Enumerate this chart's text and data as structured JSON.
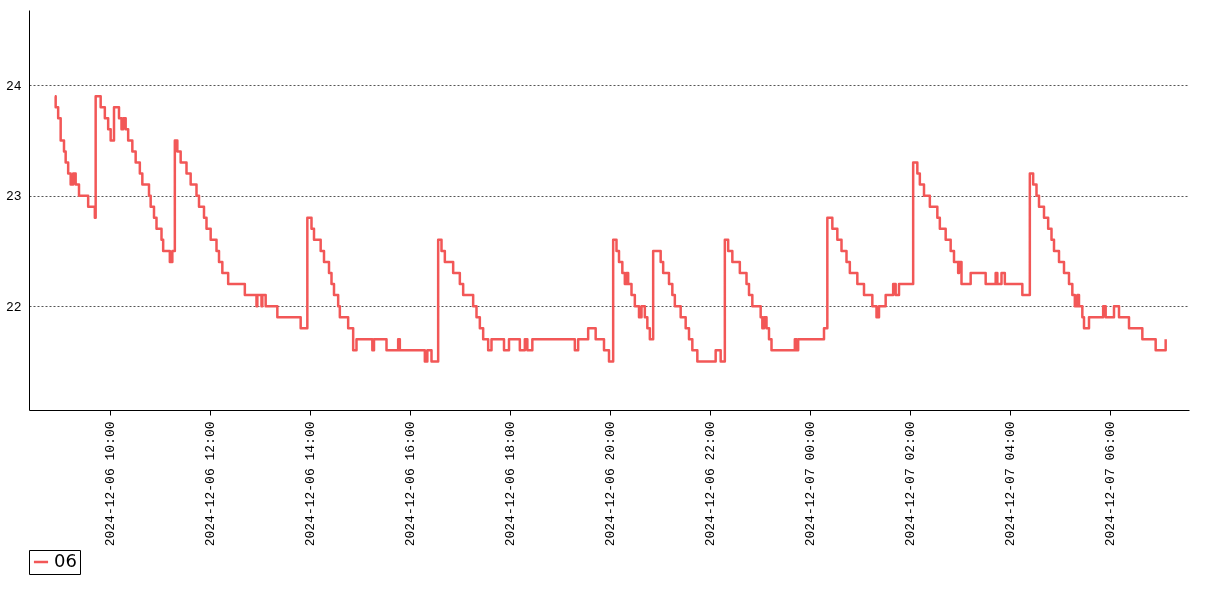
{
  "chart_data": {
    "type": "step",
    "xlim": [
      "2024-12-06T08:23",
      "2024-12-07T07:35"
    ],
    "ylim": [
      21.06,
      24.68
    ],
    "yticks": [
      22,
      23,
      24
    ],
    "xticks": [
      {
        "value": "2024-12-06T10:00",
        "label": "2024-12-06 10:00"
      },
      {
        "value": "2024-12-06T12:00",
        "label": "2024-12-06 12:00"
      },
      {
        "value": "2024-12-06T14:00",
        "label": "2024-12-06 14:00"
      },
      {
        "value": "2024-12-06T16:00",
        "label": "2024-12-06 16:00"
      },
      {
        "value": "2024-12-06T18:00",
        "label": "2024-12-06 18:00"
      },
      {
        "value": "2024-12-06T20:00",
        "label": "2024-12-06 20:00"
      },
      {
        "value": "2024-12-06T22:00",
        "label": "2024-12-06 22:00"
      },
      {
        "value": "2024-12-07T00:00",
        "label": "2024-12-07 00:00"
      },
      {
        "value": "2024-12-07T02:00",
        "label": "2024-12-07 02:00"
      },
      {
        "value": "2024-12-07T04:00",
        "label": "2024-12-07 04:00"
      },
      {
        "value": "2024-12-07T06:00",
        "label": "2024-12-07 06:00"
      }
    ],
    "grid": "y",
    "legend": "bottom",
    "x": [
      "2024-12-06T08:54",
      "2024-12-06T08:55",
      "2024-12-06T08:58",
      "2024-12-06T09:01",
      "2024-12-06T09:05",
      "2024-12-06T09:07",
      "2024-12-06T09:10",
      "2024-12-06T09:13",
      "2024-12-06T09:16",
      "2024-12-06T09:19",
      "2024-12-06T09:23",
      "2024-12-06T09:34",
      "2024-12-06T09:42",
      "2024-12-06T09:43",
      "2024-12-06T09:49",
      "2024-12-06T09:54",
      "2024-12-06T09:58",
      "2024-12-06T10:01",
      "2024-12-06T10:05",
      "2024-12-06T10:11",
      "2024-12-06T10:14",
      "2024-12-06T10:16",
      "2024-12-06T10:19",
      "2024-12-06T10:22",
      "2024-12-06T10:27",
      "2024-12-06T10:31",
      "2024-12-06T10:36",
      "2024-12-06T10:39",
      "2024-12-06T10:47",
      "2024-12-06T10:49",
      "2024-12-06T10:53",
      "2024-12-06T10:56",
      "2024-12-06T11:02",
      "2024-12-06T11:04",
      "2024-12-06T11:12",
      "2024-12-06T11:15",
      "2024-12-06T11:18",
      "2024-12-06T11:21",
      "2024-12-06T11:25",
      "2024-12-06T11:32",
      "2024-12-06T11:37",
      "2024-12-06T11:44",
      "2024-12-06T11:47",
      "2024-12-06T11:53",
      "2024-12-06T11:56",
      "2024-12-06T12:01",
      "2024-12-06T12:08",
      "2024-12-06T12:11",
      "2024-12-06T12:15",
      "2024-12-06T12:22",
      "2024-12-06T12:42",
      "2024-12-06T12:56",
      "2024-12-06T12:57",
      "2024-12-06T13:02",
      "2024-12-06T13:03",
      "2024-12-06T13:07",
      "2024-12-06T13:21",
      "2024-12-06T13:49",
      "2024-12-06T13:57",
      "2024-12-06T14:02",
      "2024-12-06T14:05",
      "2024-12-06T14:13",
      "2024-12-06T14:17",
      "2024-12-06T14:23",
      "2024-12-06T14:26",
      "2024-12-06T14:29",
      "2024-12-06T14:34",
      "2024-12-06T14:36",
      "2024-12-06T14:46",
      "2024-12-06T14:52",
      "2024-12-06T14:56",
      "2024-12-06T15:15",
      "2024-12-06T15:17",
      "2024-12-06T15:32",
      "2024-12-06T15:46",
      "2024-12-06T15:48",
      "2024-12-06T16:18",
      "2024-12-06T16:21",
      "2024-12-06T16:26",
      "2024-12-06T16:34",
      "2024-12-06T16:38",
      "2024-12-06T16:42",
      "2024-12-06T16:52",
      "2024-12-06T17:00",
      "2024-12-06T17:04",
      "2024-12-06T17:16",
      "2024-12-06T17:20",
      "2024-12-06T17:24",
      "2024-12-06T17:28",
      "2024-12-06T17:34",
      "2024-12-06T17:38",
      "2024-12-06T17:53",
      "2024-12-06T17:59",
      "2024-12-06T18:12",
      "2024-12-06T18:18",
      "2024-12-06T18:21",
      "2024-12-06T18:27",
      "2024-12-06T19:18",
      "2024-12-06T19:22",
      "2024-12-06T19:34",
      "2024-12-06T19:43",
      "2024-12-06T19:53",
      "2024-12-06T19:59",
      "2024-12-06T20:04",
      "2024-12-06T20:08",
      "2024-12-06T20:11",
      "2024-12-06T20:15",
      "2024-12-06T20:18",
      "2024-12-06T20:20",
      "2024-12-06T20:22",
      "2024-12-06T20:26",
      "2024-12-06T20:30",
      "2024-12-06T20:35",
      "2024-12-06T20:38",
      "2024-12-06T20:42",
      "2024-12-06T20:45",
      "2024-12-06T20:48",
      "2024-12-06T20:52",
      "2024-12-06T21:01",
      "2024-12-06T21:04",
      "2024-12-06T21:11",
      "2024-12-06T21:15",
      "2024-12-06T21:18",
      "2024-12-06T21:25",
      "2024-12-06T21:31",
      "2024-12-06T21:35",
      "2024-12-06T21:39",
      "2024-12-06T21:45",
      "2024-12-06T22:07",
      "2024-12-06T22:13",
      "2024-12-06T22:18",
      "2024-12-06T22:22",
      "2024-12-06T22:27",
      "2024-12-06T22:36",
      "2024-12-06T22:44",
      "2024-12-06T22:47",
      "2024-12-06T22:51",
      "2024-12-06T23:01",
      "2024-12-06T23:03",
      "2024-12-06T23:05",
      "2024-12-06T23:08",
      "2024-12-06T23:11",
      "2024-12-06T23:14",
      "2024-12-06T23:42",
      "2024-12-06T23:44",
      "2024-12-06T23:46",
      "2024-12-07T00:17",
      "2024-12-07T00:21",
      "2024-12-07T00:27",
      "2024-12-07T00:33",
      "2024-12-07T00:38",
      "2024-12-07T00:44",
      "2024-12-07T00:48",
      "2024-12-07T00:57",
      "2024-12-07T01:05",
      "2024-12-07T01:15",
      "2024-12-07T01:20",
      "2024-12-07T01:23",
      "2024-12-07T01:31",
      "2024-12-07T01:40",
      "2024-12-07T01:43",
      "2024-12-07T01:47",
      "2024-12-07T02:04",
      "2024-12-07T02:09",
      "2024-12-07T02:12",
      "2024-12-07T02:17",
      "2024-12-07T02:24",
      "2024-12-07T02:33",
      "2024-12-07T02:36",
      "2024-12-07T02:43",
      "2024-12-07T02:49",
      "2024-12-07T02:53",
      "2024-12-07T02:58",
      "2024-12-07T02:59",
      "2024-12-07T03:02",
      "2024-12-07T03:13",
      "2024-12-07T03:31",
      "2024-12-07T03:43",
      "2024-12-07T03:45",
      "2024-12-07T03:50",
      "2024-12-07T03:54",
      "2024-12-07T04:15",
      "2024-12-07T04:24",
      "2024-12-07T04:28",
      "2024-12-07T04:32",
      "2024-12-07T04:35",
      "2024-12-07T04:41",
      "2024-12-07T04:46",
      "2024-12-07T04:50",
      "2024-12-07T04:53",
      "2024-12-07T04:59",
      "2024-12-07T05:05",
      "2024-12-07T05:11",
      "2024-12-07T05:15",
      "2024-12-07T05:18",
      "2024-12-07T05:21",
      "2024-12-07T05:23",
      "2024-12-07T05:27",
      "2024-12-07T05:29",
      "2024-12-07T05:35",
      "2024-12-07T05:52",
      "2024-12-07T05:55",
      "2024-12-07T06:05",
      "2024-12-07T06:11",
      "2024-12-07T06:23",
      "2024-12-07T06:39",
      "2024-12-07T06:55",
      "2024-12-07T07:07"
    ],
    "series": [
      {
        "name": "06",
        "color": "#f25757",
        "values": [
          23.9,
          23.8,
          23.7,
          23.5,
          23.4,
          23.3,
          23.2,
          23.1,
          23.2,
          23.1,
          23.0,
          22.9,
          22.8,
          23.9,
          23.8,
          23.7,
          23.6,
          23.5,
          23.8,
          23.7,
          23.6,
          23.7,
          23.6,
          23.5,
          23.4,
          23.3,
          23.2,
          23.1,
          23.0,
          22.9,
          22.8,
          22.7,
          22.6,
          22.5,
          22.4,
          22.5,
          23.5,
          23.4,
          23.3,
          23.2,
          23.1,
          23.0,
          22.9,
          22.8,
          22.7,
          22.6,
          22.5,
          22.4,
          22.3,
          22.2,
          22.1,
          22.0,
          22.1,
          22.0,
          22.1,
          22.0,
          21.9,
          21.8,
          22.8,
          22.7,
          22.6,
          22.5,
          22.4,
          22.3,
          22.2,
          22.1,
          22.0,
          21.9,
          21.8,
          21.6,
          21.7,
          21.6,
          21.7,
          21.6,
          21.7,
          21.6,
          21.5,
          21.6,
          21.5,
          22.6,
          22.5,
          22.4,
          22.3,
          22.2,
          22.1,
          22.0,
          21.9,
          21.8,
          21.7,
          21.6,
          21.7,
          21.6,
          21.7,
          21.6,
          21.7,
          21.6,
          21.7,
          21.6,
          21.7,
          21.8,
          21.7,
          21.6,
          21.5,
          22.6,
          22.5,
          22.4,
          22.3,
          22.2,
          22.3,
          22.2,
          22.1,
          22.0,
          21.9,
          22.0,
          21.9,
          21.8,
          21.7,
          22.5,
          22.4,
          22.3,
          22.2,
          22.1,
          22.0,
          21.9,
          21.8,
          21.7,
          21.6,
          21.5,
          21.6,
          21.5,
          22.6,
          22.5,
          22.4,
          22.3,
          22.2,
          22.1,
          22.0,
          21.9,
          21.8,
          21.9,
          21.8,
          21.7,
          21.6,
          21.7,
          21.6,
          21.7,
          21.8,
          22.8,
          22.7,
          22.6,
          22.5,
          22.4,
          22.3,
          22.2,
          22.1,
          22.0,
          21.9,
          22.0,
          22.1,
          22.2,
          22.1,
          22.2,
          23.3,
          23.2,
          23.1,
          23.0,
          22.9,
          22.8,
          22.7,
          22.6,
          22.5,
          22.4,
          22.3,
          22.4,
          22.2,
          22.3,
          22.2,
          22.3,
          22.2,
          22.3,
          22.2,
          22.1,
          23.2,
          23.1,
          23.0,
          22.9,
          22.8,
          22.7,
          22.6,
          22.5,
          22.4,
          22.3,
          22.2,
          22.1,
          22.0,
          22.1,
          22.0,
          21.9,
          21.8,
          21.9,
          22.0,
          21.9,
          22.0,
          21.9,
          21.8,
          21.7,
          21.6,
          21.7
        ]
      }
    ]
  }
}
